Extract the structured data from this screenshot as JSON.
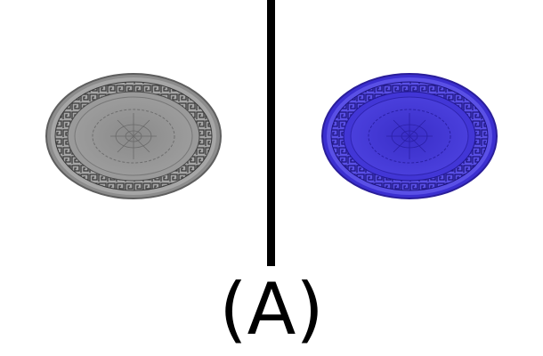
{
  "caption": "(A)",
  "plates": [
    {
      "name": "grayscale-plate",
      "rim": "#5e5e5e",
      "base": "#8c8c8c",
      "light": "#a6a6a6",
      "dark": "#3a3a3a"
    },
    {
      "name": "blue-plate",
      "rim": "#2a1e9a",
      "base": "#3b2fd0",
      "light": "#5a50e6",
      "dark": "#1d1480"
    }
  ],
  "divider_color": "#000000"
}
